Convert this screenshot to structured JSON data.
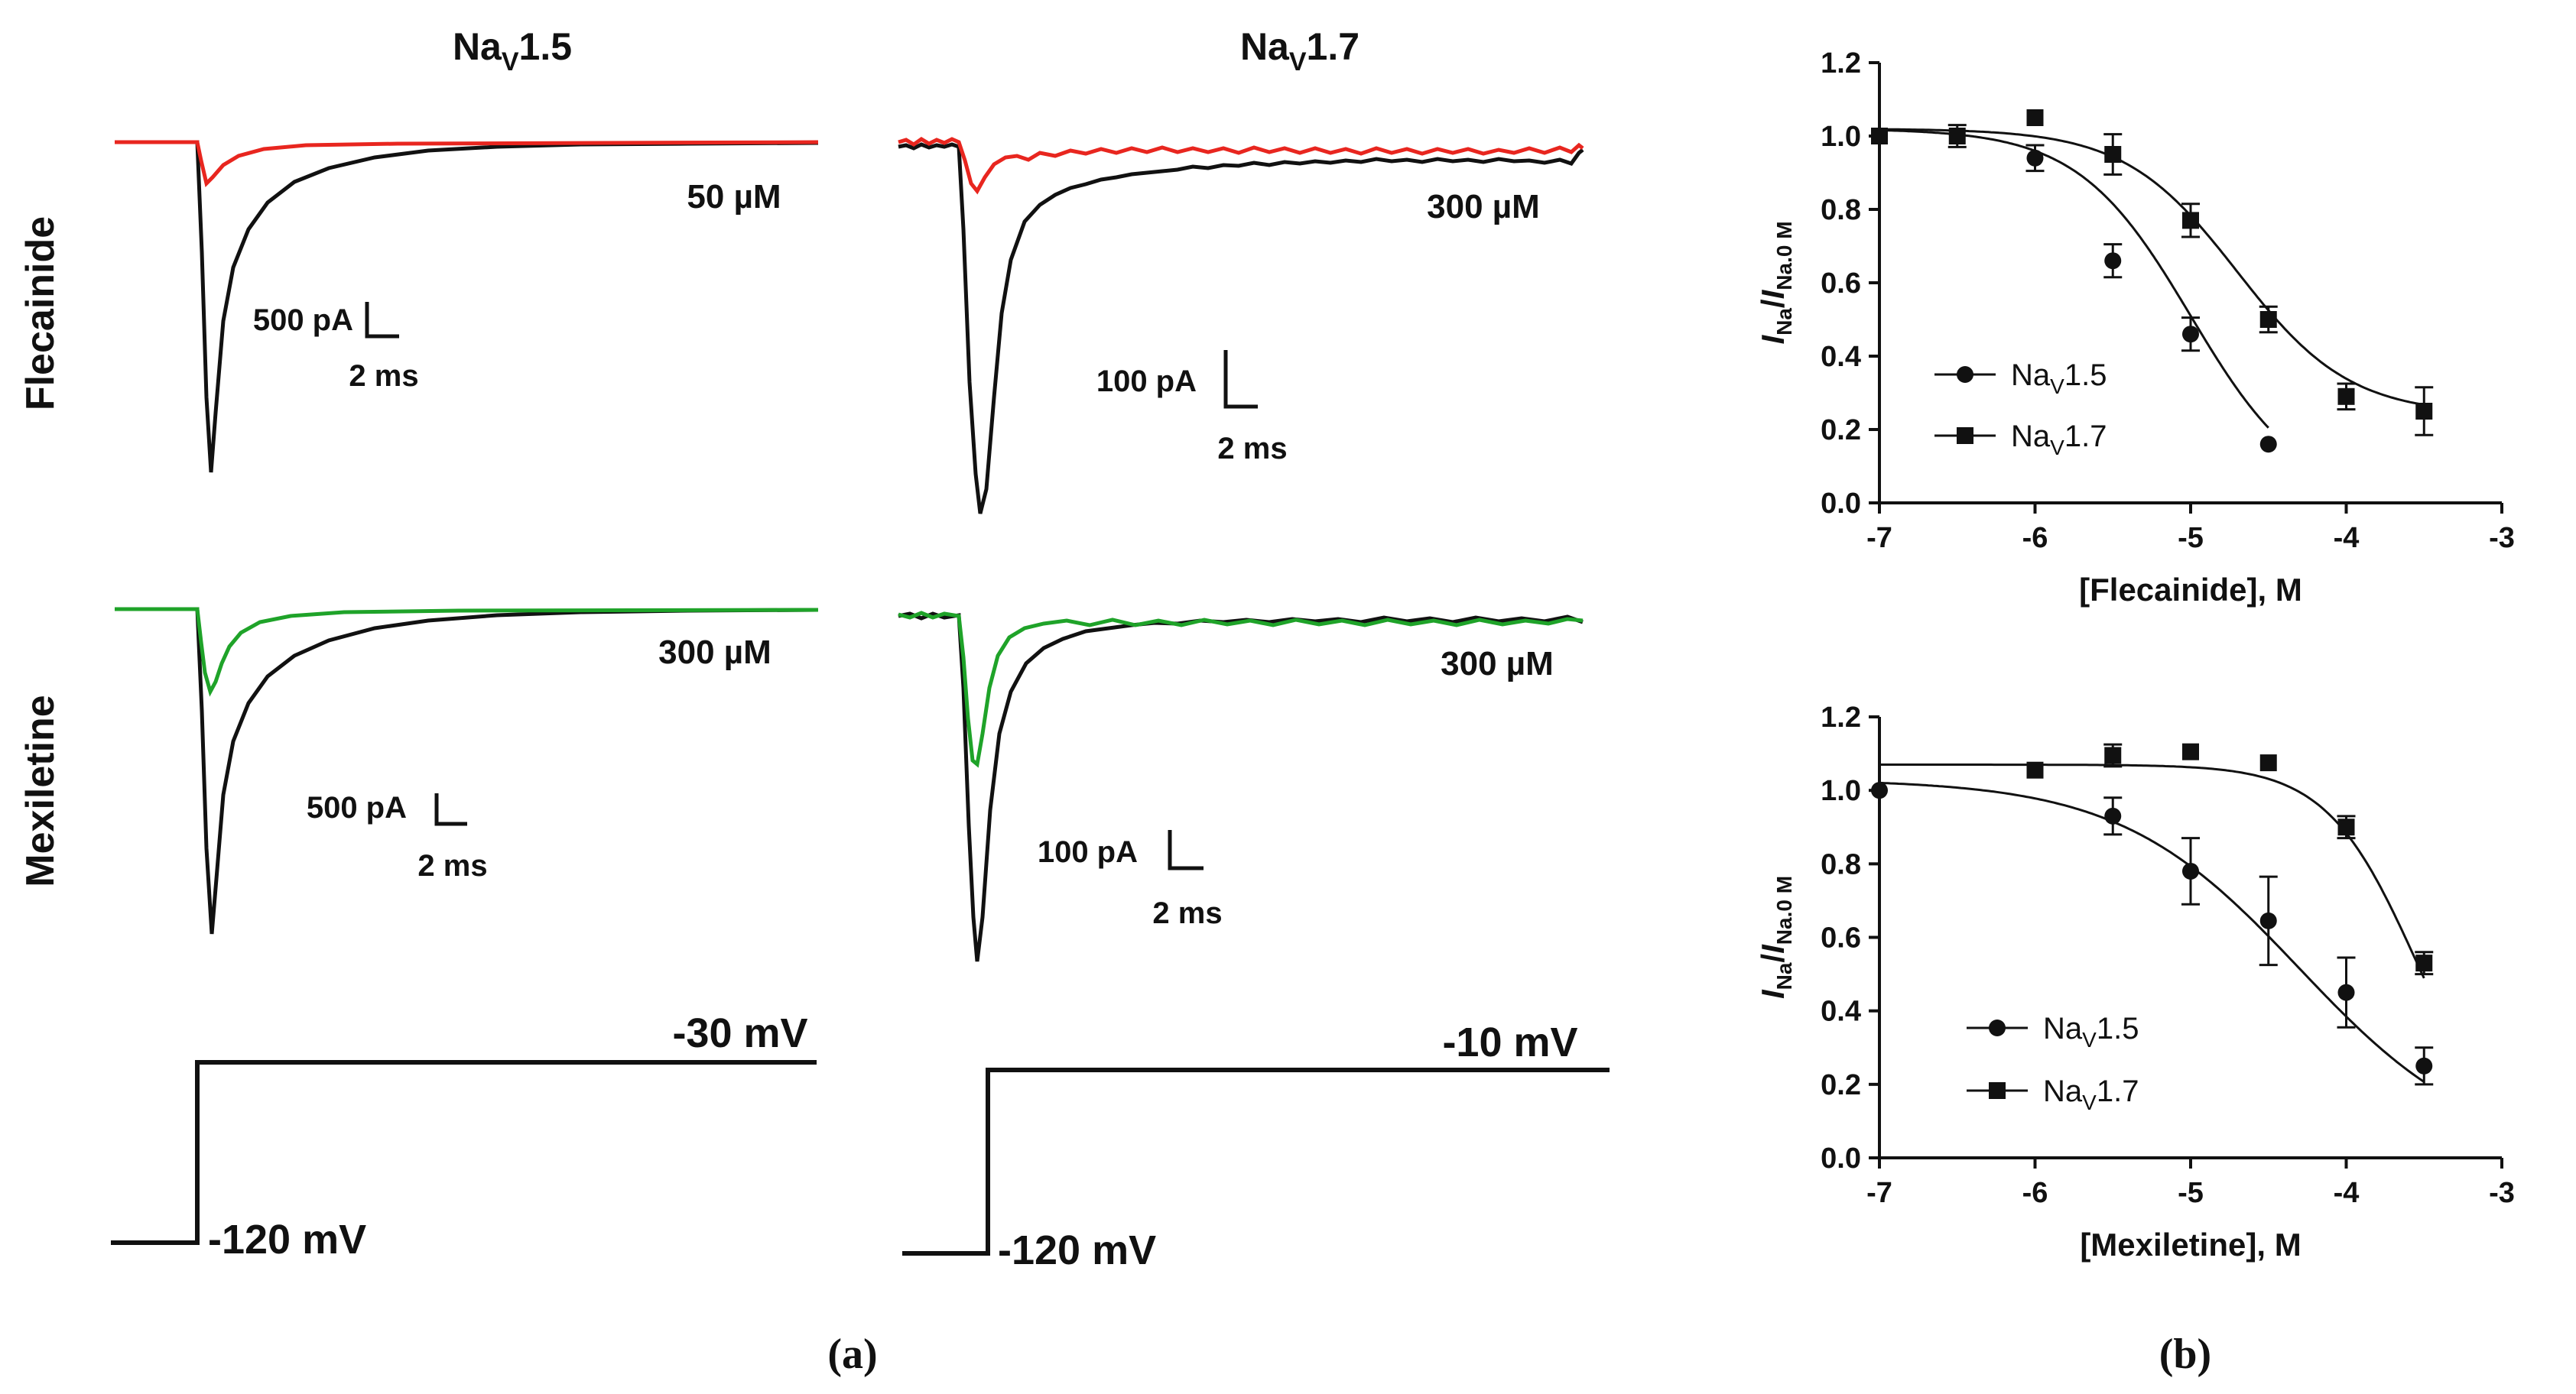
{
  "colors": {
    "control": "#111111",
    "flecainide": "#e8261f",
    "mexiletine": "#1fa329"
  },
  "panel_a": {
    "caption": "(a)",
    "channel_titles": [
      {
        "base": "Na",
        "sub": "V",
        "tail": "1.5"
      },
      {
        "base": "Na",
        "sub": "V",
        "tail": "1.7"
      }
    ],
    "drug_labels": [
      "Flecainide",
      "Mexiletine"
    ],
    "concentrations": {
      "flec_15": "50 µM",
      "flec_17": "300 µM",
      "mex_15": "300 µM",
      "mex_17": "300 µM"
    },
    "scale_bars": {
      "flec_15": {
        "current": "500 pA",
        "time": "2 ms"
      },
      "flec_17": {
        "current": "100 pA",
        "time": "2 ms"
      },
      "mex_15": {
        "current": "500 pA",
        "time": "2 ms"
      },
      "mex_17": {
        "current": "100 pA",
        "time": "2 ms"
      }
    },
    "protocols": {
      "nav15": {
        "hold": "-120 mV",
        "step": "-30 mV"
      },
      "nav17": {
        "hold": "-120 mV",
        "step": "-10 mV"
      }
    }
  },
  "panel_b": {
    "caption": "(b)"
  },
  "chart_data": [
    {
      "type": "scatter",
      "title": "",
      "xlabel": "[Flecainide], M",
      "ylabel": {
        "num": "I",
        "num_sub": "Na",
        "den": "I",
        "den_sub": "Na.0 M"
      },
      "xlim": [
        -7,
        -3
      ],
      "ylim": [
        0,
        1.2
      ],
      "xticks": [
        -7,
        -6,
        -5,
        -4,
        -3
      ],
      "yticks": [
        "0.0",
        "0.2",
        "0.4",
        "0.6",
        "0.8",
        "1.0",
        "1.2"
      ],
      "legend": "middle-left",
      "series": [
        {
          "name": "NaV1.5",
          "legend_label": {
            "base": "Na",
            "sub": "V",
            "tail": "1.5"
          },
          "marker": "circle",
          "x": [
            -7,
            -6,
            -5.5,
            -5,
            -4.5
          ],
          "y": [
            1.0,
            0.94,
            0.66,
            0.46,
            0.16
          ],
          "err": [
            0,
            0.035,
            0.045,
            0.045,
            0
          ],
          "fit": {
            "top": 1.02,
            "bottom": 0.0,
            "log_ic50": -5.0,
            "hill": 1.2,
            "x_end": -4.5
          }
        },
        {
          "name": "NaV1.7",
          "legend_label": {
            "base": "Na",
            "sub": "V",
            "tail": "1.7"
          },
          "marker": "square",
          "x": [
            -7,
            -6.5,
            -6,
            -5.5,
            -5,
            -4.5,
            -4,
            -3.5
          ],
          "y": [
            1.0,
            1.0,
            1.05,
            0.95,
            0.77,
            0.5,
            0.29,
            0.25
          ],
          "err": [
            0,
            0.03,
            0,
            0.055,
            0.045,
            0.035,
            0.035,
            0.065
          ],
          "fit": {
            "top": 1.02,
            "bottom": 0.24,
            "log_ic50": -4.7,
            "hill": 1.2,
            "x_end": -3.5
          }
        }
      ]
    },
    {
      "type": "scatter",
      "title": "",
      "xlabel": "[Mexiletine], M",
      "ylabel": {
        "num": "I",
        "num_sub": "Na",
        "den": "I",
        "den_sub": "Na.0 M"
      },
      "xlim": [
        -7,
        -3
      ],
      "ylim": [
        0,
        1.2
      ],
      "xticks": [
        -7,
        -6,
        -5,
        -4,
        -3
      ],
      "yticks": [
        "0.0",
        "0.2",
        "0.4",
        "0.6",
        "0.8",
        "1.0",
        "1.2"
      ],
      "legend": "bottom-left",
      "series": [
        {
          "name": "NaV1.5",
          "legend_label": {
            "base": "Na",
            "sub": "V",
            "tail": "1.5"
          },
          "marker": "circle",
          "x": [
            -7,
            -5.5,
            -5,
            -4.5,
            -4,
            -3.5
          ],
          "y": [
            1.0,
            0.93,
            0.78,
            0.645,
            0.45,
            0.25
          ],
          "err": [
            0,
            0.05,
            0.09,
            0.12,
            0.095,
            0.05
          ],
          "fit": {
            "top": 1.03,
            "bottom": 0.0,
            "log_ic50": -4.3,
            "hill": 0.75,
            "x_end": -3.5
          }
        },
        {
          "name": "NaV1.7",
          "legend_label": {
            "base": "Na",
            "sub": "V",
            "tail": "1.7"
          },
          "marker": "square",
          "x": [
            -6,
            -5.5,
            -5,
            -4.5,
            -4,
            -3.5
          ],
          "y": [
            1.055,
            1.095,
            1.105,
            1.075,
            0.9,
            0.53
          ],
          "err": [
            0,
            0.03,
            0,
            0,
            0.03,
            0.03
          ],
          "fit": {
            "top": 1.07,
            "bottom": 0.0,
            "log_ic50": -3.55,
            "hill": 1.5,
            "x_start": -7,
            "x_end": -3.5
          }
        }
      ]
    }
  ]
}
